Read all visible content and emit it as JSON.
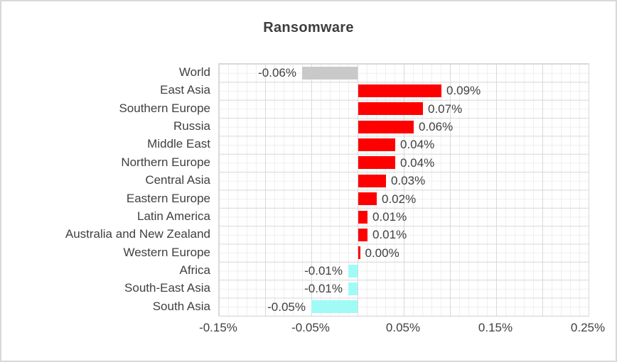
{
  "window": {
    "background": "#FFFFFF",
    "border_color": "#D8D8DA"
  },
  "chart_data": {
    "type": "bar",
    "orientation": "horizontal",
    "title": "Ransomware",
    "xlabel": "",
    "ylabel": "",
    "xlim": [
      -0.15,
      0.25
    ],
    "x_major_step": 0.05,
    "x_minor_step": 0.01,
    "grid": "major and minor gridlines on both axes",
    "legend_position": "none",
    "categories": [
      "World",
      "East Asia",
      "Southern Europe",
      "Russia",
      "Middle East",
      "Northern Europe",
      "Central Asia",
      "Eastern Europe",
      "Latin America",
      "Australia and New Zealand",
      "Western Europe",
      "Africa",
      "South-East Asia",
      "South Asia"
    ],
    "values": [
      -0.06,
      0.09,
      0.07,
      0.06,
      0.04,
      0.04,
      0.03,
      0.02,
      0.01,
      0.01,
      0.0,
      -0.01,
      -0.01,
      -0.05
    ],
    "value_labels": [
      "-0.06%",
      "0.09%",
      "0.07%",
      "0.06%",
      "0.04%",
      "0.04%",
      "0.03%",
      "0.02%",
      "0.01%",
      "0.01%",
      "0.00%",
      "-0.01%",
      "-0.01%",
      "-0.05%"
    ],
    "bar_colors": [
      "#C9C9C9",
      "#FF0000",
      "#FF0000",
      "#FF0000",
      "#FF0000",
      "#FF0000",
      "#FF0000",
      "#FF0000",
      "#FF0000",
      "#FF0000",
      "#FF0000",
      "#A0FBF7",
      "#A0FBF7",
      "#A0FBF7"
    ],
    "x_ticks": [
      {
        "value": -0.15,
        "label": "-0.15%"
      },
      {
        "value": -0.05,
        "label": "-0.05%"
      },
      {
        "value": 0.05,
        "label": "0.05%"
      },
      {
        "value": 0.15,
        "label": "0.15%"
      },
      {
        "value": 0.25,
        "label": "0.25%"
      }
    ],
    "colors": {
      "positive_bar": "#FF0000",
      "negative_bar": "#A0FBF7",
      "world_bar": "#C9C9C9",
      "major_grid": "#D9D9D9",
      "minor_grid": "#EFEFEF",
      "text": "#404040"
    }
  }
}
